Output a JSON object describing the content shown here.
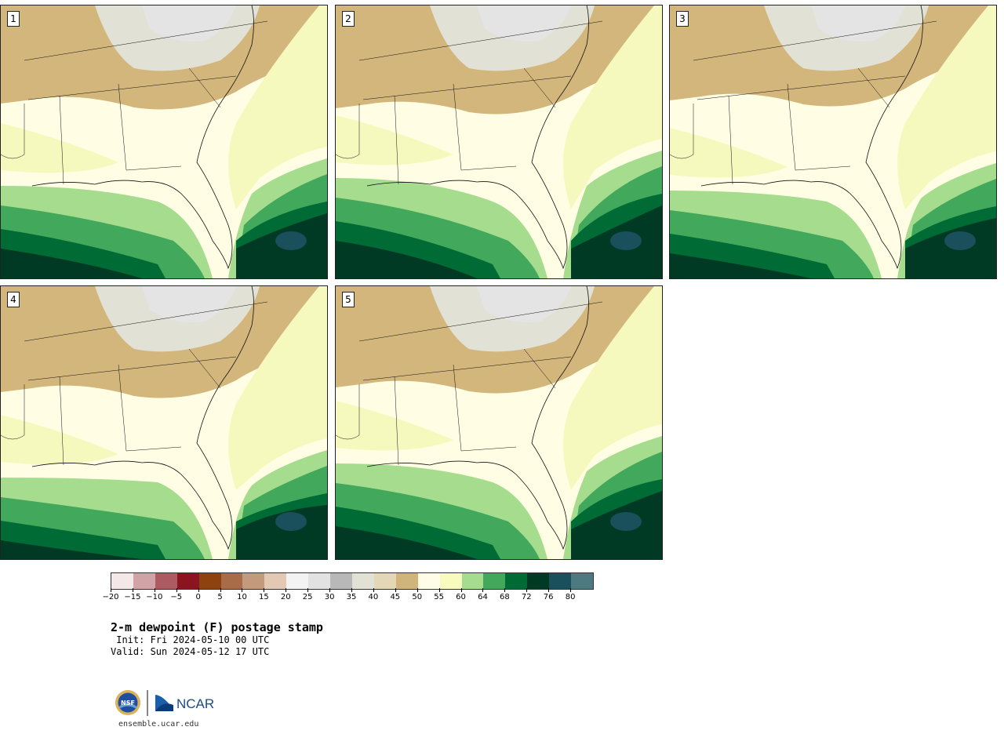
{
  "panels": [
    {
      "label": "1"
    },
    {
      "label": "2"
    },
    {
      "label": "3"
    },
    {
      "label": "4"
    },
    {
      "label": "5"
    }
  ],
  "colorbar": {
    "colors": [
      "#f4e8e8",
      "#d2a3a6",
      "#ad5a62",
      "#8c1420",
      "#8e430f",
      "#aa6c48",
      "#c49a7d",
      "#e3c8b3",
      "#f3f3f3",
      "#e2e2e2",
      "#b8b8b8",
      "#e2e1d6",
      "#e4d7b5",
      "#d1b47a",
      "#fffde6",
      "#f8fbbd",
      "#a6dc8e",
      "#42a85c",
      "#006b34",
      "#003a24",
      "#1a4f5c",
      "#4c7a80"
    ],
    "ticks": [
      "−20",
      "−15",
      "−10",
      "−5",
      "0",
      "5",
      "10",
      "15",
      "20",
      "25",
      "30",
      "35",
      "40",
      "45",
      "50",
      "55",
      "60",
      "64",
      "68",
      "72",
      "76",
      "80"
    ]
  },
  "title": "2-m dewpoint (F) postage stamp",
  "init": " Init: Fri 2024-05-10 00 UTC",
  "valid": "Valid: Sun 2024-05-12 17 UTC",
  "logo": {
    "left": "NSF",
    "right": "NCAR"
  },
  "url": "ensemble.ucar.edu"
}
